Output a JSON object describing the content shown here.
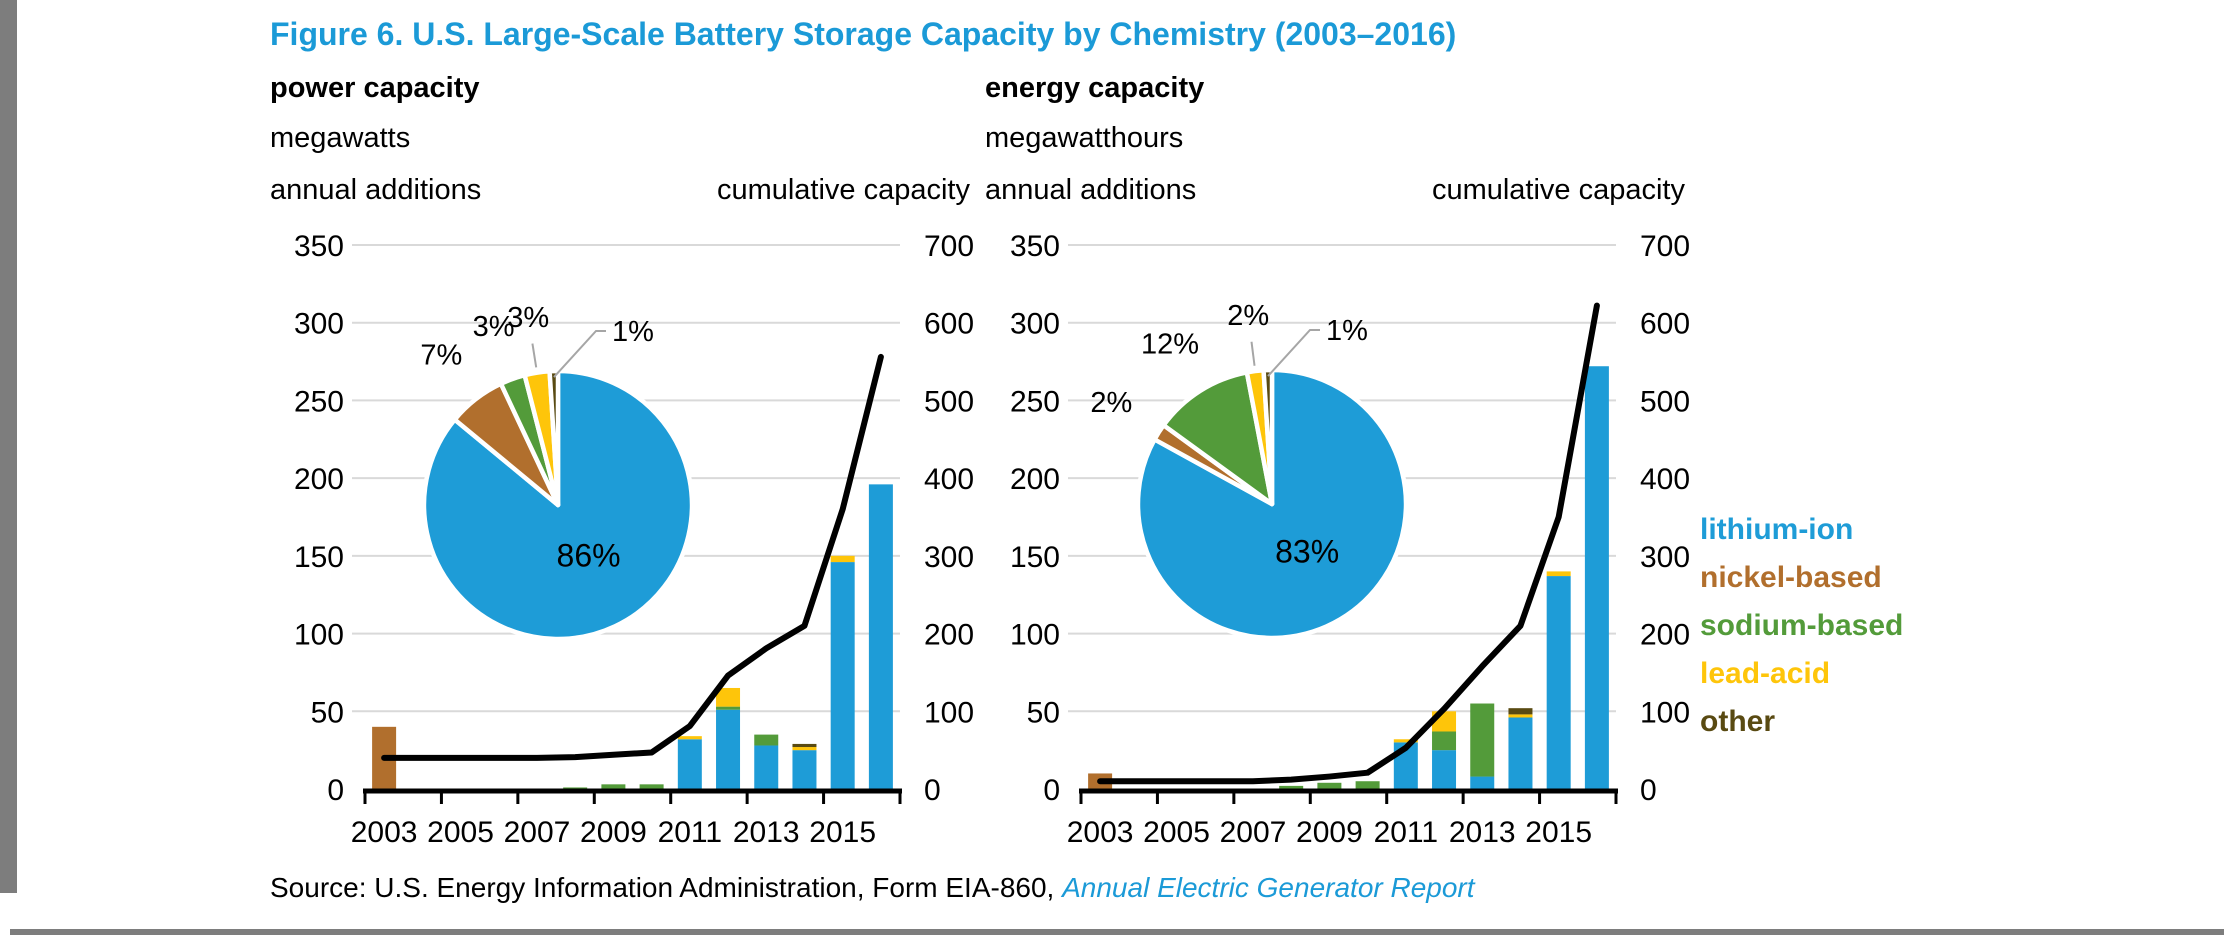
{
  "page": {
    "title": "Figure 6. U.S. Large-Scale Battery Storage Capacity by Chemistry (2003–2016)",
    "source_prefix": "Source: U.S. Energy Information Administration, Form EIA-860, ",
    "source_report": "Annual Electric Generator Report"
  },
  "colors": {
    "title_blue": "#1b9ad7",
    "lithium_ion": "#1e9cd7",
    "nickel_based": "#b16f2d",
    "sodium_based": "#539b3a",
    "lead_acid": "#fec50a",
    "other": "#594a12",
    "line": "#000000",
    "gridline": "#d9d9d9",
    "edge_gray": "#7d7d7d",
    "leader_gray": "#a6a6a6"
  },
  "legend": {
    "items": [
      {
        "label": "lithium-ion",
        "color_key": "lithium_ion"
      },
      {
        "label": "nickel-based",
        "color_key": "nickel_based"
      },
      {
        "label": "sodium-based",
        "color_key": "sodium_based"
      },
      {
        "label": "lead-acid",
        "color_key": "lead_acid"
      },
      {
        "label": "other",
        "color_key": "other"
      }
    ]
  },
  "chart_data": [
    {
      "id": "power",
      "type": "bar",
      "title": "power capacity",
      "unit": "megawatts",
      "left_axis_caption": "annual additions",
      "right_axis_caption": "cumulative capacity",
      "x": [
        2003,
        2004,
        2005,
        2006,
        2007,
        2008,
        2009,
        2010,
        2011,
        2012,
        2013,
        2014,
        2015,
        2016
      ],
      "x_ticks": [
        "2003",
        "2005",
        "2007",
        "2009",
        "2011",
        "2013",
        "2015"
      ],
      "left_ticks": [
        0,
        50,
        100,
        150,
        200,
        250,
        300,
        350
      ],
      "right_ticks": [
        0,
        100,
        200,
        300,
        400,
        500,
        600,
        700
      ],
      "left_ylim": [
        0,
        350
      ],
      "right_ylim": [
        0,
        700
      ],
      "series": [
        {
          "name": "lithium-ion",
          "color_key": "lithium_ion",
          "values": [
            0,
            0,
            0,
            0,
            0,
            0,
            0,
            0,
            32,
            51,
            28,
            25,
            146,
            196
          ]
        },
        {
          "name": "nickel-based",
          "color_key": "nickel_based",
          "values": [
            40,
            0,
            0,
            0,
            0,
            0,
            0,
            0,
            0,
            0,
            0,
            0,
            0,
            0
          ]
        },
        {
          "name": "sodium-based",
          "color_key": "sodium_based",
          "values": [
            0,
            0,
            0,
            0,
            0,
            1,
            3,
            3,
            0,
            2,
            7,
            0,
            0,
            0
          ]
        },
        {
          "name": "lead-acid",
          "color_key": "lead_acid",
          "values": [
            0,
            0,
            0,
            0,
            0,
            0,
            0,
            0,
            2,
            12,
            0,
            2,
            4,
            0
          ]
        },
        {
          "name": "other",
          "color_key": "other",
          "values": [
            0,
            0,
            0,
            0,
            0,
            0,
            0,
            0,
            0,
            0,
            0,
            2,
            0,
            0
          ]
        }
      ],
      "line": {
        "name": "cumulative capacity",
        "axis": "right",
        "values": [
          40,
          40,
          40,
          40,
          40,
          41,
          44,
          47,
          81,
          146,
          181,
          210,
          360,
          556
        ]
      },
      "pie": {
        "slices": [
          {
            "label": "lithium-ion",
            "color_key": "lithium_ion",
            "pct": 86,
            "text": "86%"
          },
          {
            "label": "nickel-based",
            "color_key": "nickel_based",
            "pct": 7,
            "text": "7%"
          },
          {
            "label": "sodium-based",
            "color_key": "sodium_based",
            "pct": 3,
            "text": "3%"
          },
          {
            "label": "lead-acid",
            "color_key": "lead_acid",
            "pct": 3,
            "text": "3%"
          },
          {
            "label": "other",
            "color_key": "other",
            "pct": 1,
            "text": "1%"
          }
        ]
      }
    },
    {
      "id": "energy",
      "type": "bar",
      "title": "energy capacity",
      "unit": "megawatthours",
      "left_axis_caption": "annual additions",
      "right_axis_caption": "cumulative capacity",
      "x": [
        2003,
        2004,
        2005,
        2006,
        2007,
        2008,
        2009,
        2010,
        2011,
        2012,
        2013,
        2014,
        2015,
        2016
      ],
      "x_ticks": [
        "2003",
        "2005",
        "2007",
        "2009",
        "2011",
        "2013",
        "2015"
      ],
      "left_ticks": [
        0,
        50,
        100,
        150,
        200,
        250,
        300,
        350
      ],
      "right_ticks": [
        0,
        100,
        200,
        300,
        400,
        500,
        600,
        700
      ],
      "left_ylim": [
        0,
        350
      ],
      "right_ylim": [
        0,
        700
      ],
      "series": [
        {
          "name": "lithium-ion",
          "color_key": "lithium_ion",
          "values": [
            0,
            0,
            0,
            0,
            0,
            0,
            0,
            0,
            30,
            25,
            8,
            46,
            137,
            272
          ]
        },
        {
          "name": "nickel-based",
          "color_key": "nickel_based",
          "values": [
            10,
            0,
            0,
            0,
            0,
            0,
            0,
            0,
            0,
            0,
            0,
            0,
            0,
            0
          ]
        },
        {
          "name": "sodium-based",
          "color_key": "sodium_based",
          "values": [
            0,
            0,
            0,
            0,
            0,
            2,
            4,
            5,
            0,
            12,
            47,
            0,
            0,
            0
          ]
        },
        {
          "name": "lead-acid",
          "color_key": "lead_acid",
          "values": [
            0,
            0,
            0,
            0,
            0,
            0,
            0,
            0,
            2,
            13,
            0,
            2,
            3,
            0
          ]
        },
        {
          "name": "other",
          "color_key": "other",
          "values": [
            0,
            0,
            0,
            0,
            0,
            0,
            0,
            0,
            0,
            0,
            0,
            4,
            0,
            0
          ]
        }
      ],
      "line": {
        "name": "cumulative capacity",
        "axis": "right",
        "values": [
          10,
          10,
          10,
          10,
          10,
          12,
          16,
          21,
          53,
          103,
          158,
          210,
          350,
          622
        ]
      },
      "pie": {
        "slices": [
          {
            "label": "lithium-ion",
            "color_key": "lithium_ion",
            "pct": 83,
            "text": "83%"
          },
          {
            "label": "nickel-based",
            "color_key": "nickel_based",
            "pct": 2,
            "text": "2%"
          },
          {
            "label": "sodium-based",
            "color_key": "sodium_based",
            "pct": 12,
            "text": "12%"
          },
          {
            "label": "lead-acid",
            "color_key": "lead_acid",
            "pct": 2,
            "text": "2%"
          },
          {
            "label": "other",
            "color_key": "other",
            "pct": 1,
            "text": "1%"
          }
        ]
      }
    }
  ]
}
